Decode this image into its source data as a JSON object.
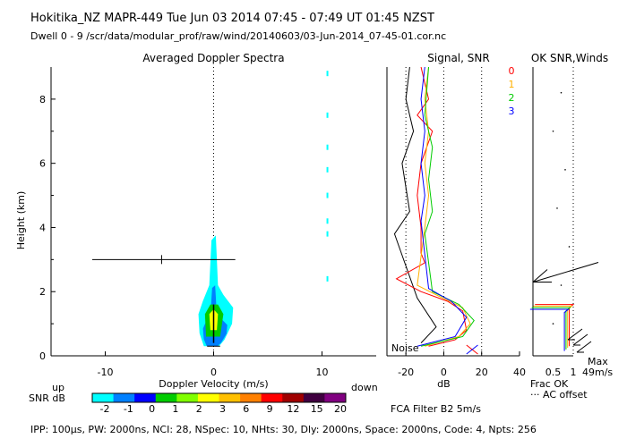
{
  "header": {
    "line1": "Hokitika_NZ   MAPR-449   Tue Jun 03 2014 07:45 - 07:49 UT 01:45 NZST",
    "line2": "Dwell   0 -  9   /scr/data/modular_prof/raw/wind/20140603/03-Jun-2014_07-45-01.cor.nc"
  },
  "footer": {
    "params": "IPP: 100µs,  PW: 2000ns,  NCI:  28,  NSpec: 10,  NHts: 30,  Dly: 2000ns,  Space: 2000ns,  Code: 4,  Npts: 256",
    "filter": "FCA Filter B2   5m/s"
  },
  "labels": {
    "up": "up",
    "down": "down",
    "snr_db": "SNR dB",
    "noise": "Noise",
    "frac_ok": "Frac OK",
    "ac_offset": "··· AC offset",
    "max": "Max",
    "max_speed": "49m/s"
  },
  "colors": {
    "colorbar": [
      "#00ffff",
      "#0080ff",
      "#0000ff",
      "#00cc00",
      "#80ff00",
      "#ffff00",
      "#ffc000",
      "#ff8000",
      "#ff0000",
      "#a00000",
      "#400040",
      "#800080"
    ],
    "snr_profiles": [
      "#ff0000",
      "#ffb000",
      "#00cc00",
      "#0000ff"
    ]
  },
  "chart_data": [
    {
      "type": "heatmap",
      "title": "Averaged Doppler Spectra",
      "xlabel": "Doppler Velocity (m/s)",
      "ylabel": "Height (km)",
      "xlim": [
        -15,
        15
      ],
      "ylim": [
        0,
        9
      ],
      "x_ticks": [
        -10,
        0,
        10
      ],
      "y_ticks": [
        0,
        2,
        4,
        6,
        8
      ],
      "colorbar_label": "SNR dB",
      "colorbar_ticks": [
        "-2",
        "-1",
        "0",
        "1",
        "2",
        "3",
        "6",
        "9",
        "12",
        "15",
        "20"
      ],
      "spectral_outline": [
        [
          -0.9,
          0.3
        ],
        [
          -1.3,
          0.7
        ],
        [
          -1.4,
          1.3
        ],
        [
          -1.0,
          1.7
        ],
        [
          -0.4,
          2.2
        ],
        [
          -0.3,
          2.9
        ],
        [
          -0.2,
          3.6
        ],
        [
          0.2,
          3.75
        ],
        [
          0.3,
          3.0
        ],
        [
          0.4,
          2.2
        ],
        [
          0.9,
          1.9
        ],
        [
          1.8,
          1.5
        ],
        [
          1.7,
          1.0
        ],
        [
          1.0,
          0.5
        ],
        [
          0.5,
          0.3
        ]
      ],
      "mean_velocity_marks": [
        {
          "height": 3.0,
          "velocity": -4.8,
          "width_lo": -11.2,
          "width_hi": 2.0
        }
      ],
      "noise_marks": [
        [
          10.5,
          8.8
        ],
        [
          10.5,
          7.5
        ],
        [
          10.5,
          6.5
        ],
        [
          10.5,
          5.8
        ],
        [
          10.5,
          5.0
        ],
        [
          10.5,
          4.2
        ],
        [
          10.5,
          3.8
        ],
        [
          10.5,
          2.4
        ]
      ]
    },
    {
      "type": "line",
      "title": "Signal, SNR",
      "xlabel": "dB",
      "xlim": [
        -30,
        40
      ],
      "ylim": [
        0,
        9
      ],
      "x_ticks": [
        -20,
        0,
        20,
        40
      ],
      "legend": [
        "0",
        "1",
        "2",
        "3"
      ],
      "series": [
        {
          "name": "0",
          "points": [
            [
              -8,
              0.3
            ],
            [
              6,
              0.5
            ],
            [
              12,
              0.8
            ],
            [
              10,
              1.4
            ],
            [
              2,
              1.7
            ],
            [
              -12,
              2.0
            ],
            [
              -25,
              2.4
            ],
            [
              -10,
              2.9
            ],
            [
              -12,
              3.2
            ],
            [
              -12,
              4.0
            ],
            [
              -14,
              5.0
            ],
            [
              -12,
              6.0
            ],
            [
              -6,
              7.0
            ],
            [
              -14,
              7.5
            ],
            [
              -8,
              8.0
            ],
            [
              -10,
              8.5
            ],
            [
              -12,
              9.0
            ]
          ]
        },
        {
          "name": "1",
          "points": [
            [
              -10,
              0.3
            ],
            [
              8,
              0.6
            ],
            [
              14,
              1.0
            ],
            [
              10,
              1.5
            ],
            [
              -4,
              1.9
            ],
            [
              -14,
              2.2
            ],
            [
              -10,
              4.0
            ],
            [
              -8,
              5.0
            ],
            [
              -10,
              6.0
            ],
            [
              -8,
              7.0
            ],
            [
              -10,
              8.0
            ],
            [
              -8,
              9.0
            ]
          ]
        },
        {
          "name": "2",
          "points": [
            [
              -12,
              0.3
            ],
            [
              10,
              0.6
            ],
            [
              16,
              1.1
            ],
            [
              8,
              1.6
            ],
            [
              -6,
              2.0
            ],
            [
              -10,
              3.8
            ],
            [
              -6,
              4.5
            ],
            [
              -8,
              5.5
            ],
            [
              -6,
              6.5
            ],
            [
              -10,
              7.5
            ],
            [
              -8,
              9.0
            ]
          ]
        },
        {
          "name": "3",
          "points": [
            [
              -14,
              0.3
            ],
            [
              6,
              0.6
            ],
            [
              12,
              1.2
            ],
            [
              4,
              1.7
            ],
            [
              -8,
              2.1
            ],
            [
              -12,
              4.2
            ],
            [
              -10,
              5.0
            ],
            [
              -12,
              6.0
            ],
            [
              -10,
              7.0
            ],
            [
              -12,
              8.0
            ],
            [
              -10,
              9.0
            ]
          ]
        }
      ],
      "signal": [
        [
          -12,
          0.4
        ],
        [
          -4,
          0.9
        ],
        [
          -14,
          1.8
        ],
        [
          -26,
          3.8
        ],
        [
          -18,
          4.5
        ],
        [
          -22,
          6.0
        ],
        [
          -16,
          7.0
        ],
        [
          -20,
          8.0
        ],
        [
          -18,
          9.0
        ]
      ]
    },
    {
      "type": "line",
      "title": "OK SNR,Winds",
      "xlabel": "Frac OK",
      "xlim": [
        0,
        1
      ],
      "x_ticks": [
        "0.5",
        "1"
      ],
      "fraction_ok": [
        [
          0.9,
          0.3
        ],
        [
          0.9,
          1.5
        ],
        [
          1.0,
          1.6
        ],
        [
          0.05,
          1.6
        ]
      ],
      "winds": [
        {
          "height": 2.8,
          "speed": 49,
          "label": "Max"
        }
      ]
    }
  ]
}
